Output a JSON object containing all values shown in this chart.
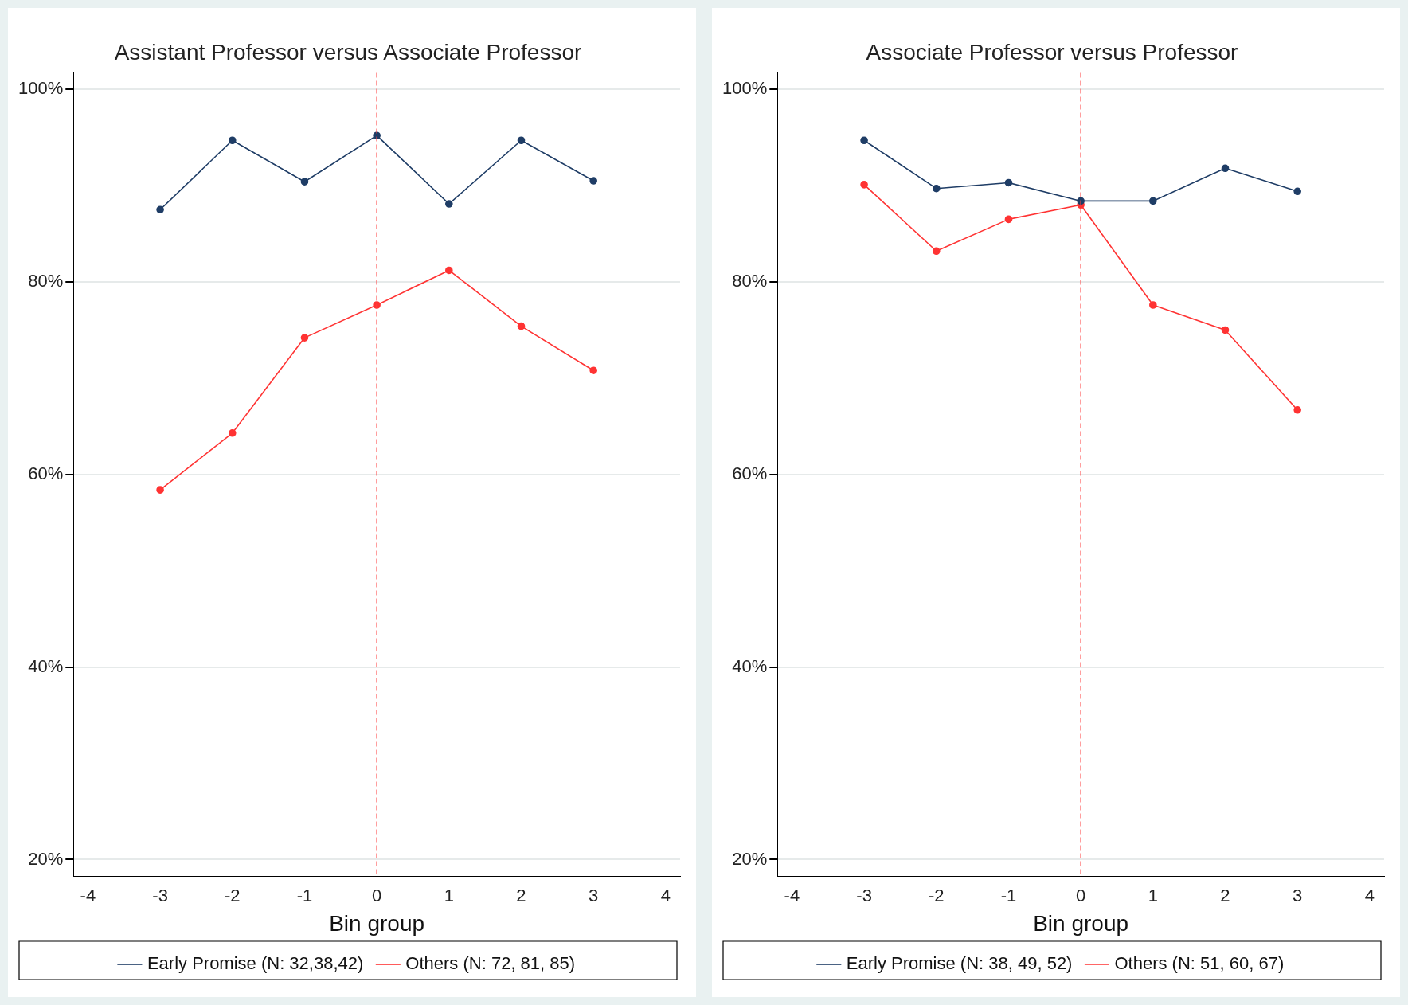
{
  "chart_data": [
    {
      "type": "line",
      "title": "Assistant Professor versus Associate Professor",
      "xlabel": "Bin group",
      "x": [
        -3,
        -2,
        -1,
        0,
        1,
        2,
        3
      ],
      "xlim": [
        -4.2,
        4.2
      ],
      "xticks": [
        -4,
        -3,
        -2,
        -1,
        0,
        1,
        2,
        3,
        4
      ],
      "ylim": [
        18.3,
        101.7
      ],
      "yticks": [
        {
          "value": 20,
          "label": "20%"
        },
        {
          "value": 40,
          "label": "40%"
        },
        {
          "value": 60,
          "label": "60%"
        },
        {
          "value": 80,
          "label": "80%"
        },
        {
          "value": 100,
          "label": "100%"
        }
      ],
      "grid": "y",
      "legend": "bottom",
      "marker": "circle",
      "line_style": "solid",
      "ref_lines": [
        {
          "axis": "x",
          "value": 0,
          "color": "#ff4444",
          "line_style": "dashed"
        }
      ],
      "series": [
        {
          "name": "Early Promise (N: 32,38,42)",
          "color": "#1f3d66",
          "values": [
            87.5,
            94.7,
            90.4,
            95.2,
            88.1,
            94.7,
            90.5
          ]
        },
        {
          "name": "Others (N: 72, 81, 85)",
          "color": "#ff3333",
          "values": [
            58.4,
            64.3,
            74.2,
            77.6,
            81.2,
            75.4,
            70.8
          ]
        }
      ]
    },
    {
      "type": "line",
      "title": "Associate Professor versus Professor",
      "xlabel": "Bin group",
      "x": [
        -3,
        -2,
        -1,
        0,
        1,
        2,
        3
      ],
      "xlim": [
        -4.2,
        4.2
      ],
      "xticks": [
        -4,
        -3,
        -2,
        -1,
        0,
        1,
        2,
        3,
        4
      ],
      "ylim": [
        18.3,
        101.7
      ],
      "yticks": [
        {
          "value": 20,
          "label": "20%"
        },
        {
          "value": 40,
          "label": "40%"
        },
        {
          "value": 60,
          "label": "60%"
        },
        {
          "value": 80,
          "label": "80%"
        },
        {
          "value": 100,
          "label": "100%"
        }
      ],
      "grid": "y",
      "legend": "bottom",
      "marker": "circle",
      "line_style": "solid",
      "ref_lines": [
        {
          "axis": "x",
          "value": 0,
          "color": "#ff4444",
          "line_style": "dashed"
        }
      ],
      "series": [
        {
          "name": "Early Promise (N: 38, 49, 52)",
          "color": "#1f3d66",
          "values": [
            94.7,
            89.7,
            90.3,
            88.4,
            88.4,
            91.8,
            89.4
          ]
        },
        {
          "name": "Others (N: 51, 60, 67)",
          "color": "#ff3333",
          "values": [
            90.1,
            83.2,
            86.5,
            88.0,
            77.6,
            75.0,
            66.7
          ]
        }
      ]
    }
  ]
}
